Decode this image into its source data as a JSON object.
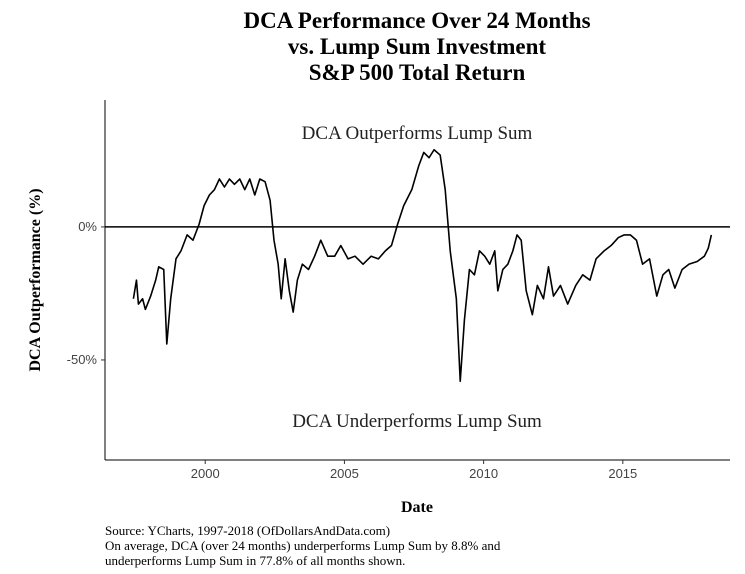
{
  "chart_data": {
    "type": "line",
    "title": [
      "DCA Performance Over 24 Months",
      "vs. Lump Sum Investment",
      "S&P 500 Total Return"
    ],
    "annotations": [
      "DCA Outperforms Lump Sum",
      "DCA Underperforms Lump Sum"
    ],
    "xlabel": "Date",
    "ylabel": "DCA Outperformance (%)",
    "notes": [
      "Source:  YCharts, 1997-2018 (OfDollarsAndData.com)",
      "On average, DCA (over 24 months) underperforms Lump Sum by 8.8% and",
      "underperforms Lump Sum in 77.8% of all months shown."
    ],
    "x": [
      1997.42,
      1997.53,
      1997.6,
      1997.75,
      1997.85,
      1998.04,
      1998.22,
      1998.33,
      1998.51,
      1998.62,
      1998.76,
      1998.95,
      1999.13,
      1999.35,
      1999.56,
      1999.78,
      1999.96,
      2000.15,
      2000.33,
      2000.51,
      2000.69,
      2000.87,
      2001.05,
      2001.24,
      2001.42,
      2001.6,
      2001.78,
      2001.96,
      2002.15,
      2002.33,
      2002.47,
      2002.62,
      2002.73,
      2002.87,
      2003.02,
      2003.16,
      2003.31,
      2003.49,
      2003.71,
      2003.93,
      2004.15,
      2004.4,
      2004.65,
      2004.87,
      2005.13,
      2005.38,
      2005.67,
      2005.96,
      2006.22,
      2006.47,
      2006.69,
      2006.91,
      2007.13,
      2007.42,
      2007.67,
      2007.85,
      2008.04,
      2008.22,
      2008.44,
      2008.62,
      2008.8,
      2009.02,
      2009.16,
      2009.31,
      2009.49,
      2009.67,
      2009.85,
      2010.04,
      2010.22,
      2010.4,
      2010.51,
      2010.69,
      2010.87,
      2011.05,
      2011.2,
      2011.35,
      2011.53,
      2011.75,
      2011.93,
      2012.15,
      2012.33,
      2012.51,
      2012.76,
      2013.02,
      2013.31,
      2013.56,
      2013.82,
      2014.04,
      2014.33,
      2014.58,
      2014.84,
      2015.05,
      2015.27,
      2015.49,
      2015.71,
      2015.96,
      2016.22,
      2016.44,
      2016.65,
      2016.87,
      2017.13,
      2017.38,
      2017.67,
      2017.93,
      2018.07,
      2018.18
    ],
    "series": [
      {
        "color": "#000000",
        "values": [
          -27,
          -20,
          -29,
          -27,
          -31,
          -26,
          -20,
          -15,
          -16,
          -44,
          -27,
          -12,
          -9,
          -3,
          -5,
          1,
          8,
          12,
          14,
          18,
          15,
          18,
          16,
          18,
          14,
          18,
          12,
          18,
          17,
          10,
          -5,
          -14,
          -27,
          -12,
          -24,
          -32,
          -20,
          -14,
          -16,
          -11,
          -5,
          -11,
          -11,
          -7,
          -12,
          -11,
          -14,
          -11,
          -12,
          -9,
          -7,
          1,
          8,
          14,
          23,
          28,
          26,
          29,
          27,
          14,
          -9,
          -27,
          -58,
          -35,
          -16,
          -18,
          -9,
          -11,
          -14,
          -9,
          -24,
          -16,
          -14,
          -9,
          -3,
          -5,
          -24,
          -33,
          -22,
          -27,
          -15,
          -26,
          -22,
          -29,
          -22,
          -18,
          -20,
          -12,
          -9,
          -7,
          -4,
          -3,
          -3,
          -5,
          -14,
          -12,
          -26,
          -18,
          -16,
          -23,
          -16,
          -14,
          -13,
          -11,
          -8,
          -3
        ]
      }
    ],
    "hline": 0,
    "xlim": [
      1996.4,
      2018.85
    ],
    "ylim": [
      -87.6,
      47.7
    ],
    "xticks": [
      2000,
      2005,
      2010,
      2015
    ],
    "yticks": [
      {
        "value": 0,
        "label": "0%"
      },
      {
        "value": -50,
        "label": "-50%"
      }
    ]
  }
}
